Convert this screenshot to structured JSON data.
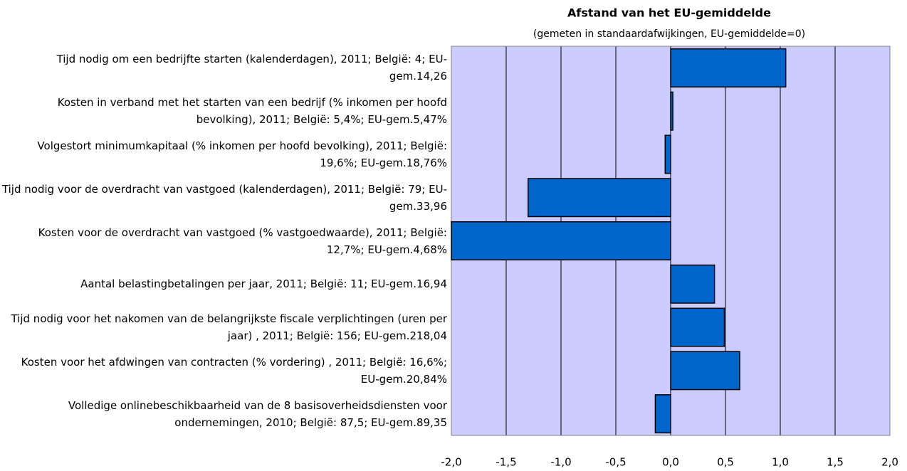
{
  "chart_data": {
    "type": "barh",
    "title": "Afstand van het EU-gemiddelde",
    "subtitle": "(gemeten in standaardafwijkingen, EU-gemiddelde=0)",
    "categories": [
      "Tijd nodig om een bedrijfte starten (kalenderdagen), 2011; België: 4; EU-gem.14,26",
      "Kosten in verband met het starten van een bedrijf (% inkomen per hoofd bevolking), 2011; België: 5,4%; EU-gem.5,47%",
      "Volgestort minimumkapitaal (% inkomen per hoofd bevolking), 2011; België: 19,6%; EU-gem.18,76%",
      "Tijd nodig voor de overdracht van vastgoed (kalenderdagen), 2011; België: 79; EU-gem.33,96",
      "Kosten voor de overdracht van vastgoed (% vastgoedwaarde), 2011; België: 12,7%; EU-gem.4,68%",
      "Aantal belastingbetalingen per jaar, 2011; België: 11; EU-gem.16,94",
      "Tijd nodig voor het nakomen van de belangrijkste fiscale verplichtingen (uren per jaar) , 2011; België: 156; EU-gem.218,04",
      "Kosten voor het afdwingen van contracten (% vordering) , 2011; België: 16,6%; EU-gem.20,84%",
      "Volledige onlinebeschikbaarheid van de 8 basisoverheidsdiensten voor ondernemingen, 2010; België: 87,5; EU-gem.89,35"
    ],
    "values": [
      1.05,
      0.02,
      -0.05,
      -1.3,
      -2.0,
      0.4,
      0.49,
      0.63,
      -0.14
    ],
    "color": "#0066cc",
    "background": "#ccccff",
    "xlim": [
      -2,
      2
    ],
    "xticks": [
      {
        "value": -2,
        "label": "-2,0"
      },
      {
        "value": -1.5,
        "label": "-1,5"
      },
      {
        "value": -1,
        "label": "-1,0"
      },
      {
        "value": -0.5,
        "label": "-0,5"
      },
      {
        "value": 0,
        "label": "0,0"
      },
      {
        "value": 0.5,
        "label": "0,5"
      },
      {
        "value": 1,
        "label": "1,0"
      },
      {
        "value": 1.5,
        "label": "1,5"
      },
      {
        "value": 2,
        "label": "2,0"
      }
    ],
    "grid": true
  }
}
